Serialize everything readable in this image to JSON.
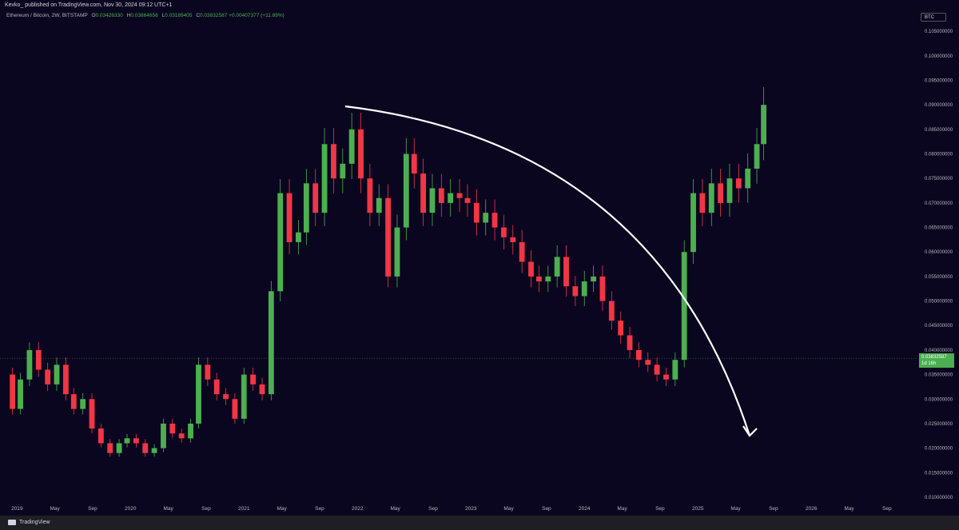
{
  "header": {
    "publisher": "Kevko_ published on TradingView.com, Nov 30, 2024 09:12 UTC+1"
  },
  "legend": {
    "symbol": "Ethereum / Bitcoin, 2W, BITSTAMP",
    "open_label": "O",
    "open": "0.03426330",
    "high_label": "H",
    "high": "0.03864656",
    "low_label": "L",
    "low": "0.03189405",
    "close_label": "C",
    "close": "0.03832587",
    "change": "+0.00407377 (+11.89%)"
  },
  "currency_button": "BTC",
  "current_price": {
    "value": "0.03832587",
    "countdown": "1d 16h"
  },
  "footer": {
    "brand": "TradingView"
  },
  "colors": {
    "up": "#4caf50",
    "down": "#f23645",
    "background": "#0b0620",
    "arrow": "#ffffff"
  },
  "chart_data": {
    "type": "candlestick",
    "timeframe": "2W",
    "y_axis_ticks": [
      "0.105000000",
      "0.100000000",
      "0.095000000",
      "0.090000000",
      "0.085000000",
      "0.080000000",
      "0.075000000",
      "0.070000000",
      "0.065000000",
      "0.060000000",
      "0.055000000",
      "0.050000000",
      "0.045000000",
      "0.040000000",
      "0.035000000",
      "0.030000000",
      "0.025000000",
      "0.020000000",
      "0.015000000",
      "0.010000000"
    ],
    "ylim": [
      0.0095,
      0.1065
    ],
    "x_axis_ticks": [
      "2019",
      "May",
      "Sep",
      "2020",
      "May",
      "Sep",
      "2021",
      "May",
      "Sep",
      "2022",
      "May",
      "Sep",
      "2023",
      "May",
      "Sep",
      "2024",
      "May",
      "Sep",
      "2025",
      "May",
      "Sep",
      "2026",
      "May",
      "Sep"
    ],
    "x_range": [
      2018.85,
      2026.9
    ],
    "current_price_line": 0.03832587,
    "closes": [
      {
        "date": "2018.88",
        "close": 0.035
      },
      {
        "date": "2018.96",
        "close": 0.028
      },
      {
        "date": "2019.03",
        "close": 0.034
      },
      {
        "date": "2019.11",
        "close": 0.04
      },
      {
        "date": "2019.19",
        "close": 0.036
      },
      {
        "date": "2019.27",
        "close": 0.033
      },
      {
        "date": "2019.35",
        "close": 0.037
      },
      {
        "date": "2019.43",
        "close": 0.031
      },
      {
        "date": "2019.50",
        "close": 0.028
      },
      {
        "date": "2019.58",
        "close": 0.03
      },
      {
        "date": "2019.66",
        "close": 0.024
      },
      {
        "date": "2019.74",
        "close": 0.021
      },
      {
        "date": "2019.82",
        "close": 0.019
      },
      {
        "date": "2019.90",
        "close": 0.021
      },
      {
        "date": "2019.97",
        "close": 0.022
      },
      {
        "date": "2020.05",
        "close": 0.021
      },
      {
        "date": "2020.13",
        "close": 0.019
      },
      {
        "date": "2020.21",
        "close": 0.02
      },
      {
        "date": "2020.29",
        "close": 0.025
      },
      {
        "date": "2020.37",
        "close": 0.023
      },
      {
        "date": "2020.45",
        "close": 0.022
      },
      {
        "date": "2020.53",
        "close": 0.025
      },
      {
        "date": "2020.60",
        "close": 0.037
      },
      {
        "date": "2020.68",
        "close": 0.034
      },
      {
        "date": "2020.76",
        "close": 0.031
      },
      {
        "date": "2020.84",
        "close": 0.03
      },
      {
        "date": "2020.92",
        "close": 0.026
      },
      {
        "date": "2021.00",
        "close": 0.035
      },
      {
        "date": "2021.08",
        "close": 0.033
      },
      {
        "date": "2021.16",
        "close": 0.031
      },
      {
        "date": "2021.24",
        "close": 0.052
      },
      {
        "date": "2021.32",
        "close": 0.072
      },
      {
        "date": "2021.40",
        "close": 0.062
      },
      {
        "date": "2021.48",
        "close": 0.064
      },
      {
        "date": "2021.55",
        "close": 0.074
      },
      {
        "date": "2021.63",
        "close": 0.068
      },
      {
        "date": "2021.71",
        "close": 0.082
      },
      {
        "date": "2021.79",
        "close": 0.075
      },
      {
        "date": "2021.87",
        "close": 0.078
      },
      {
        "date": "2021.95",
        "close": 0.085
      },
      {
        "date": "2022.03",
        "close": 0.075
      },
      {
        "date": "2022.11",
        "close": 0.068
      },
      {
        "date": "2022.19",
        "close": 0.071
      },
      {
        "date": "2022.27",
        "close": 0.055
      },
      {
        "date": "2022.35",
        "close": 0.065
      },
      {
        "date": "2022.43",
        "close": 0.08
      },
      {
        "date": "2022.50",
        "close": 0.076
      },
      {
        "date": "2022.58",
        "close": 0.068
      },
      {
        "date": "2022.66",
        "close": 0.073
      },
      {
        "date": "2022.74",
        "close": 0.07
      },
      {
        "date": "2022.82",
        "close": 0.072
      },
      {
        "date": "2022.90",
        "close": 0.071
      },
      {
        "date": "2022.97",
        "close": 0.07
      },
      {
        "date": "2023.05",
        "close": 0.066
      },
      {
        "date": "2023.13",
        "close": 0.068
      },
      {
        "date": "2023.21",
        "close": 0.065
      },
      {
        "date": "2023.29",
        "close": 0.063
      },
      {
        "date": "2023.37",
        "close": 0.062
      },
      {
        "date": "2023.45",
        "close": 0.058
      },
      {
        "date": "2023.53",
        "close": 0.055
      },
      {
        "date": "2023.60",
        "close": 0.054
      },
      {
        "date": "2023.68",
        "close": 0.055
      },
      {
        "date": "2023.76",
        "close": 0.059
      },
      {
        "date": "2023.84",
        "close": 0.053
      },
      {
        "date": "2023.92",
        "close": 0.051
      },
      {
        "date": "2024.00",
        "close": 0.054
      },
      {
        "date": "2024.08",
        "close": 0.055
      },
      {
        "date": "2024.16",
        "close": 0.05
      },
      {
        "date": "2024.24",
        "close": 0.046
      },
      {
        "date": "2024.32",
        "close": 0.043
      },
      {
        "date": "2024.40",
        "close": 0.04
      },
      {
        "date": "2024.48",
        "close": 0.038
      },
      {
        "date": "2024.56",
        "close": 0.037
      },
      {
        "date": "2024.64",
        "close": 0.035
      },
      {
        "date": "2024.72",
        "close": 0.034
      },
      {
        "date": "2024.80",
        "close": 0.038
      },
      {
        "date": "2024.88",
        "close": 0.06
      },
      {
        "date": "2024.96",
        "close": 0.072
      },
      {
        "date": "2025.04",
        "close": 0.068
      },
      {
        "date": "2025.12",
        "close": 0.074
      },
      {
        "date": "2025.20",
        "close": 0.07
      },
      {
        "date": "2025.28",
        "close": 0.075
      },
      {
        "date": "2025.36",
        "close": 0.073
      },
      {
        "date": "2025.44",
        "close": 0.077
      },
      {
        "date": "2025.52",
        "close": 0.082
      },
      {
        "date": "2025.58",
        "close": 0.09
      }
    ]
  }
}
